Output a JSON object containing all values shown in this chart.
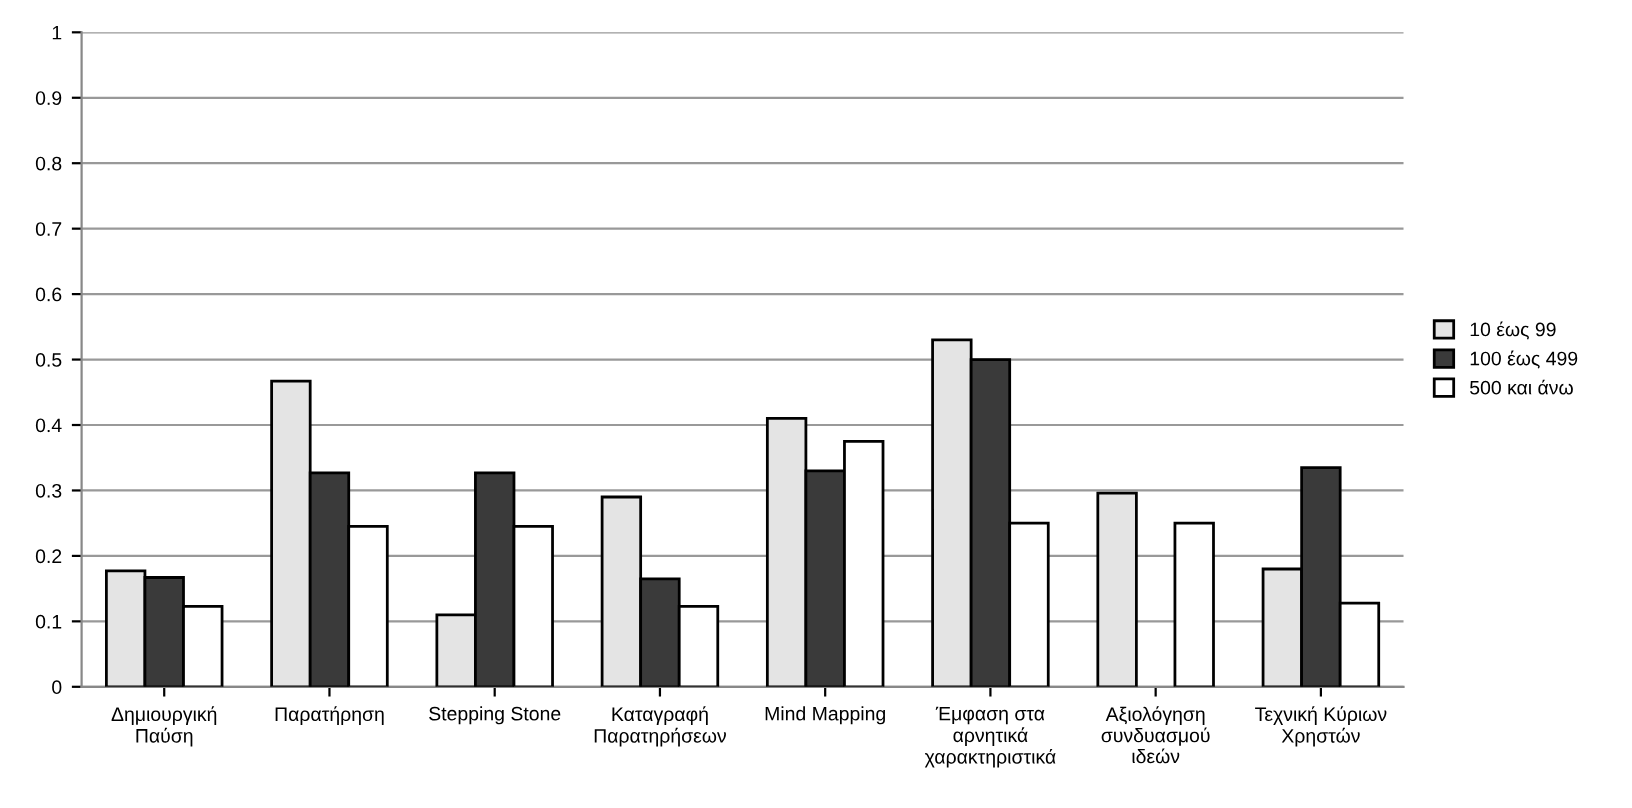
{
  "chart_data": {
    "type": "bar",
    "categories": [
      "Δημιουργική Παύση",
      "Παρατήρηση",
      "Stepping Stone",
      "Καταγραφή Παρατηρήσεων",
      "Mind Mapping",
      "Έμφαση στα αρνητικά χαρακτηριστικά",
      "Αξιολόγηση συνδυασμού ιδεών",
      "Τεχνική Κύριων Χρηστών"
    ],
    "series": [
      {
        "name": "10 έως 99",
        "color": "#e4e4e4",
        "values": [
          0.177,
          0.467,
          0.11,
          0.29,
          0.41,
          0.53,
          0.296,
          0.18
        ]
      },
      {
        "name": "100 έως 499",
        "color": "#3a3a3a",
        "values": [
          0.167,
          0.327,
          0.327,
          0.165,
          0.33,
          0.5,
          null,
          0.335
        ]
      },
      {
        "name": "500 και άνω",
        "color": "#ffffff",
        "values": [
          0.123,
          0.245,
          0.245,
          0.123,
          0.375,
          0.25,
          0.25,
          0.128
        ]
      }
    ],
    "ylim": [
      0,
      1
    ],
    "yticks": [
      0,
      {
        "value": 0.1,
        "label": "0.1"
      },
      {
        "value": 0.2,
        "label": "0.2"
      },
      {
        "value": 0.3,
        "label": "0.3"
      },
      {
        "value": 0.4,
        "label": "0.4"
      },
      {
        "value": 0.5,
        "label": "0.5"
      },
      {
        "value": 0.6,
        "label": "0.6"
      },
      {
        "value": 0.7,
        "label": "0.7"
      },
      {
        "value": 0.8,
        "label": "0.8"
      },
      {
        "value": 0.9,
        "label": "0.9"
      },
      1
    ],
    "grid": "y",
    "legend": "right"
  }
}
